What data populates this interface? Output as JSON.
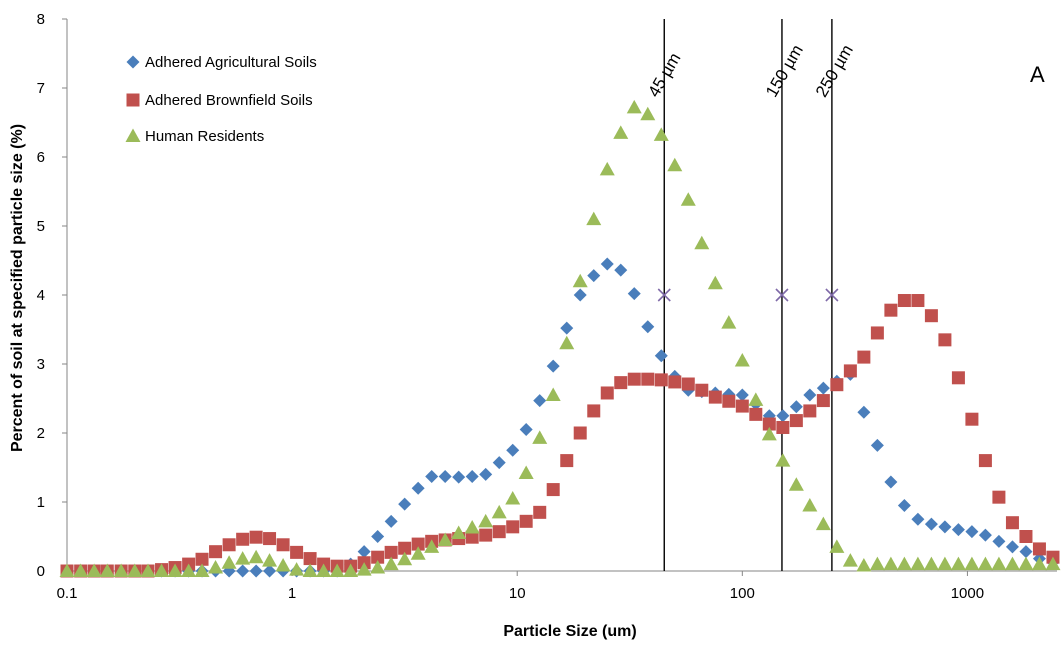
{
  "chart_data": {
    "type": "scatter",
    "xlabel": "Particle Size (um)",
    "ylabel": "Percent of soil at specified particle size (%)",
    "panel_label": "A",
    "xscale": "log",
    "xlim": [
      0.1,
      2500
    ],
    "ylim": [
      0,
      8
    ],
    "x_ticks": [
      0.1,
      1,
      10,
      100,
      1000
    ],
    "x_tick_labels": [
      "0.1",
      "1",
      "10",
      "100",
      "1000"
    ],
    "y_ticks": [
      0,
      1,
      2,
      3,
      4,
      5,
      6,
      7,
      8
    ],
    "y_tick_labels": [
      "0",
      "1",
      "2",
      "3",
      "4",
      "5",
      "6",
      "7",
      "8"
    ],
    "grid": false,
    "legend_position": "top-left",
    "series": [
      {
        "name": "Adhered Agricultural Soils",
        "marker": "diamond",
        "color": "#4a7ebb",
        "x": [
          0.1,
          0.115,
          0.132,
          0.151,
          0.174,
          0.2,
          0.229,
          0.263,
          0.302,
          0.347,
          0.398,
          0.457,
          0.525,
          0.603,
          0.692,
          0.794,
          0.912,
          1.047,
          1.202,
          1.38,
          1.585,
          1.82,
          2.089,
          2.399,
          2.754,
          3.162,
          3.631,
          4.169,
          4.786,
          5.495,
          6.31,
          7.244,
          8.318,
          9.55,
          10.96,
          12.59,
          14.45,
          16.6,
          19.05,
          21.88,
          25.12,
          28.84,
          33.11,
          38.02,
          43.65,
          50.12,
          57.54,
          66.07,
          75.86,
          87.1,
          100,
          114.8,
          131.8,
          151.4,
          173.8,
          199.5,
          229.1,
          263,
          302,
          346.7,
          398.1,
          457.1,
          524.8,
          602.6,
          691.8,
          794.3,
          912,
          1047,
          1202,
          1380,
          1585,
          1820,
          2089,
          2399
        ],
        "y": [
          0,
          0,
          0,
          0,
          0,
          0,
          0,
          0,
          0,
          0,
          0,
          0,
          0,
          0,
          0,
          0,
          0,
          0,
          0,
          0,
          0,
          0.1,
          0.28,
          0.5,
          0.72,
          0.97,
          1.2,
          1.37,
          1.37,
          1.36,
          1.37,
          1.4,
          1.57,
          1.75,
          2.05,
          2.47,
          2.97,
          3.52,
          4.0,
          4.28,
          4.45,
          4.36,
          4.02,
          3.54,
          3.12,
          2.82,
          2.62,
          2.6,
          2.58,
          2.56,
          2.55,
          2.42,
          2.25,
          2.25,
          2.38,
          2.55,
          2.65,
          2.75,
          2.85,
          2.3,
          1.82,
          1.29,
          0.95,
          0.75,
          0.68,
          0.64,
          0.6,
          0.57,
          0.52,
          0.43,
          0.35,
          0.28,
          0.18,
          0.13
        ]
      },
      {
        "name": "Adhered Brownfield Soils",
        "marker": "square",
        "color": "#c0504d",
        "x": [
          0.1,
          0.115,
          0.132,
          0.151,
          0.174,
          0.2,
          0.229,
          0.263,
          0.302,
          0.347,
          0.398,
          0.457,
          0.525,
          0.603,
          0.692,
          0.794,
          0.912,
          1.047,
          1.202,
          1.38,
          1.585,
          1.82,
          2.089,
          2.399,
          2.754,
          3.162,
          3.631,
          4.169,
          4.786,
          5.495,
          6.31,
          7.244,
          8.318,
          9.55,
          10.96,
          12.59,
          14.45,
          16.6,
          19.05,
          21.88,
          25.12,
          28.84,
          33.11,
          38.02,
          43.65,
          50.12,
          57.54,
          66.07,
          75.86,
          87.1,
          100,
          114.8,
          131.8,
          151.4,
          173.8,
          199.5,
          229.1,
          263,
          302,
          346.7,
          398.1,
          457.1,
          524.8,
          602.6,
          691.8,
          794.3,
          912,
          1047,
          1202,
          1380,
          1585,
          1820,
          2089,
          2399
        ],
        "y": [
          0,
          0,
          0,
          0,
          0,
          0,
          0,
          0.02,
          0.05,
          0.1,
          0.17,
          0.28,
          0.38,
          0.46,
          0.49,
          0.47,
          0.38,
          0.27,
          0.18,
          0.1,
          0.07,
          0.07,
          0.12,
          0.2,
          0.27,
          0.33,
          0.39,
          0.43,
          0.45,
          0.47,
          0.49,
          0.52,
          0.57,
          0.64,
          0.72,
          0.85,
          1.18,
          1.6,
          2.0,
          2.32,
          2.58,
          2.73,
          2.78,
          2.78,
          2.77,
          2.74,
          2.71,
          2.62,
          2.52,
          2.46,
          2.39,
          2.27,
          2.13,
          2.08,
          2.18,
          2.32,
          2.47,
          2.7,
          2.9,
          3.1,
          3.45,
          3.78,
          3.92,
          3.92,
          3.7,
          3.35,
          2.8,
          2.2,
          1.6,
          1.07,
          0.7,
          0.5,
          0.32,
          0.2
        ]
      },
      {
        "name": "Human Residents",
        "marker": "triangle",
        "color": "#9bbb59",
        "x": [
          0.1,
          0.115,
          0.132,
          0.151,
          0.174,
          0.2,
          0.229,
          0.263,
          0.302,
          0.347,
          0.398,
          0.457,
          0.525,
          0.603,
          0.692,
          0.794,
          0.912,
          1.047,
          1.202,
          1.38,
          1.585,
          1.82,
          2.089,
          2.399,
          2.754,
          3.162,
          3.631,
          4.169,
          4.786,
          5.495,
          6.31,
          7.244,
          8.318,
          9.55,
          10.96,
          12.59,
          14.45,
          16.6,
          19.05,
          21.88,
          25.12,
          28.84,
          33.11,
          38.02,
          43.65,
          50.12,
          57.54,
          66.07,
          75.86,
          87.1,
          100,
          114.8,
          131.8,
          151.4,
          173.8,
          199.5,
          229.1,
          263,
          302,
          346.7,
          398.1,
          457.1,
          524.8,
          602.6,
          691.8,
          794.3,
          912,
          1047,
          1202,
          1380,
          1585,
          1820,
          2089,
          2399
        ],
        "y": [
          0,
          0,
          0,
          0,
          0,
          0,
          0,
          0,
          0,
          0,
          0,
          0.05,
          0.12,
          0.18,
          0.2,
          0.15,
          0.08,
          0.02,
          0,
          0,
          0,
          0,
          0.02,
          0.05,
          0.1,
          0.17,
          0.25,
          0.35,
          0.45,
          0.55,
          0.63,
          0.72,
          0.85,
          1.05,
          1.42,
          1.93,
          2.55,
          3.3,
          4.2,
          5.1,
          5.82,
          6.35,
          6.72,
          6.62,
          6.32,
          5.88,
          5.38,
          4.75,
          4.17,
          3.6,
          3.05,
          2.48,
          1.98,
          1.6,
          1.25,
          0.95,
          0.68,
          0.35,
          0.15,
          0.08,
          0.1,
          0.1,
          0.1,
          0.1,
          0.1,
          0.1,
          0.1,
          0.1,
          0.1,
          0.1,
          0.1,
          0.1,
          0.1,
          0.1
        ]
      }
    ],
    "reference_lines": [
      {
        "x": 45,
        "label": "45 µm",
        "marker_y": 4
      },
      {
        "x": 150,
        "label": "150 µm",
        "marker_y": 4
      },
      {
        "x": 250,
        "label": "250 µm",
        "marker_y": 4
      }
    ],
    "reference_marker_color": "#7f6aa8"
  }
}
